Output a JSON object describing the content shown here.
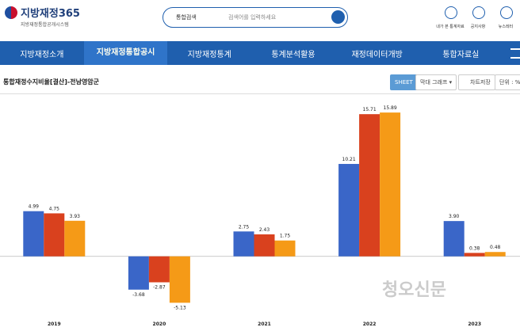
{
  "header": {
    "logo": "지방재정365",
    "logo_sub": "지방재정통합공개시스템",
    "search_scope": "통합검색",
    "search_placeholder": "검색어를 입력하세요",
    "icons": [
      "내가 본 통계자료",
      "공지사항",
      "뉴스레터"
    ]
  },
  "nav": {
    "items": [
      "지방재정소개",
      "지방재정통합공시",
      "지방재정통계",
      "통계분석활용",
      "재정데이터개방",
      "통합자료실"
    ],
    "active": 1
  },
  "panel": {
    "title": "통합재정수지비율[결산]-전남영암군",
    "buttons": [
      "SHEET",
      "막대 그래프 ▾",
      "차트저장"
    ],
    "unit": "단위 : %"
  },
  "watermark": "청오신문",
  "chart_data": {
    "type": "bar",
    "categories": [
      "2019",
      "2020",
      "2021",
      "2022",
      "2023"
    ],
    "series": [
      {
        "color": "#3a66c8",
        "values": [
          4.99,
          -3.68,
          2.75,
          10.21,
          3.9
        ],
        "value_labels": [
          "4.99",
          "-3.68",
          "2.75",
          "10.21",
          "3.90"
        ]
      },
      {
        "color": "#d9411e",
        "values": [
          4.75,
          -2.87,
          2.43,
          15.71,
          0.38
        ],
        "value_labels": [
          "4.75",
          "-2.87",
          "2.43",
          "15.71",
          "0.38"
        ]
      },
      {
        "color": "#f59a17",
        "values": [
          3.93,
          -5.13,
          1.75,
          15.89,
          0.48
        ],
        "value_labels": [
          "3.93",
          "-5.13",
          "1.75",
          "15.89",
          "0.48"
        ]
      }
    ],
    "ylim": [
      -6.5,
      18
    ]
  }
}
